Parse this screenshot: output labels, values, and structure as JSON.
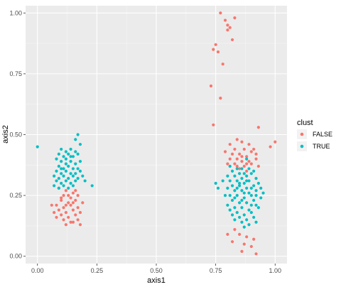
{
  "chart_data": {
    "type": "scatter",
    "xlabel": "axis1",
    "ylabel": "axis2",
    "xlim": [
      -0.05,
      1.05
    ],
    "ylim": [
      -0.03,
      1.03
    ],
    "x_ticks": [
      0,
      0.25,
      0.5,
      0.75,
      1
    ],
    "x_tick_labels": [
      "0.00",
      "0.25",
      "0.50",
      "0.75",
      "1.00"
    ],
    "y_ticks": [
      0,
      0.25,
      0.5,
      0.75,
      1
    ],
    "y_tick_labels": [
      "0.00",
      "0.25",
      "0.50",
      "0.75",
      "1.00"
    ],
    "grid": true,
    "legend": {
      "title": "clust",
      "position": "right"
    },
    "series": [
      {
        "name": "FALSE",
        "color": "#F8766D",
        "points": [
          [
            0.77,
            1.0
          ],
          [
            0.79,
            0.97
          ],
          [
            0.8,
            0.95
          ],
          [
            0.8,
            0.93
          ],
          [
            0.83,
            0.98
          ],
          [
            0.81,
            0.94
          ],
          [
            0.75,
            0.87
          ],
          [
            0.74,
            0.85
          ],
          [
            0.82,
            0.89
          ],
          [
            0.78,
            0.79
          ],
          [
            0.76,
            0.84
          ],
          [
            0.73,
            0.7
          ],
          [
            0.77,
            0.65
          ],
          [
            0.74,
            0.54
          ],
          [
            0.93,
            0.53
          ],
          [
            1.0,
            0.47
          ],
          [
            0.98,
            0.45
          ],
          [
            0.84,
            0.48
          ],
          [
            0.81,
            0.46
          ],
          [
            0.86,
            0.47
          ],
          [
            0.89,
            0.46
          ],
          [
            0.83,
            0.44
          ],
          [
            0.87,
            0.44
          ],
          [
            0.91,
            0.44
          ],
          [
            0.82,
            0.42
          ],
          [
            0.85,
            0.42
          ],
          [
            0.88,
            0.41
          ],
          [
            0.9,
            0.43
          ],
          [
            0.84,
            0.4
          ],
          [
            0.86,
            0.39
          ],
          [
            0.89,
            0.39
          ],
          [
            0.92,
            0.4
          ],
          [
            0.83,
            0.38
          ],
          [
            0.87,
            0.37
          ],
          [
            0.9,
            0.38
          ],
          [
            0.85,
            0.36
          ],
          [
            0.88,
            0.35
          ],
          [
            0.93,
            0.37
          ],
          [
            0.81,
            0.4
          ],
          [
            0.79,
            0.43
          ],
          [
            0.86,
            0.41
          ],
          [
            0.92,
            0.42
          ],
          [
            0.88,
            0.38
          ],
          [
            0.84,
            0.37
          ],
          [
            0.8,
            0.38
          ],
          [
            0.82,
            0.06
          ],
          [
            0.86,
            0.02
          ],
          [
            0.85,
            0.09
          ],
          [
            0.9,
            0.04
          ],
          [
            0.92,
            0.01
          ],
          [
            0.88,
            0.08
          ],
          [
            0.83,
            0.11
          ],
          [
            0.87,
            0.05
          ],
          [
            0.91,
            0.07
          ],
          [
            0.8,
            0.09
          ],
          [
            0.09,
            0.28
          ],
          [
            0.12,
            0.27
          ],
          [
            0.15,
            0.26
          ],
          [
            0.11,
            0.25
          ],
          [
            0.14,
            0.24
          ],
          [
            0.17,
            0.25
          ],
          [
            0.1,
            0.23
          ],
          [
            0.13,
            0.22
          ],
          [
            0.16,
            0.23
          ],
          [
            0.08,
            0.21
          ],
          [
            0.11,
            0.2
          ],
          [
            0.14,
            0.21
          ],
          [
            0.17,
            0.2
          ],
          [
            0.06,
            0.21
          ],
          [
            0.09,
            0.19
          ],
          [
            0.12,
            0.18
          ],
          [
            0.15,
            0.19
          ],
          [
            0.18,
            0.18
          ],
          [
            0.1,
            0.17
          ],
          [
            0.13,
            0.16
          ],
          [
            0.16,
            0.17
          ],
          [
            0.07,
            0.18
          ],
          [
            0.11,
            0.15
          ],
          [
            0.14,
            0.14
          ],
          [
            0.17,
            0.15
          ],
          [
            0.12,
            0.13
          ],
          [
            0.15,
            0.14
          ],
          [
            0.18,
            0.13
          ],
          [
            0.1,
            0.24
          ],
          [
            0.13,
            0.25
          ],
          [
            0.16,
            0.27
          ],
          [
            0.19,
            0.22
          ],
          [
            0.08,
            0.16
          ],
          [
            0.12,
            0.21
          ],
          [
            0.15,
            0.22
          ]
        ]
      },
      {
        "name": "TRUE",
        "color": "#00BFC4",
        "points": [
          [
            0.0,
            0.45
          ],
          [
            0.17,
            0.5
          ],
          [
            0.16,
            0.48
          ],
          [
            0.18,
            0.46
          ],
          [
            0.1,
            0.44
          ],
          [
            0.12,
            0.43
          ],
          [
            0.14,
            0.44
          ],
          [
            0.16,
            0.43
          ],
          [
            0.09,
            0.42
          ],
          [
            0.11,
            0.41
          ],
          [
            0.13,
            0.42
          ],
          [
            0.15,
            0.41
          ],
          [
            0.17,
            0.42
          ],
          [
            0.08,
            0.4
          ],
          [
            0.1,
            0.39
          ],
          [
            0.12,
            0.38
          ],
          [
            0.14,
            0.39
          ],
          [
            0.16,
            0.38
          ],
          [
            0.18,
            0.39
          ],
          [
            0.09,
            0.37
          ],
          [
            0.11,
            0.36
          ],
          [
            0.13,
            0.37
          ],
          [
            0.15,
            0.36
          ],
          [
            0.17,
            0.36
          ],
          [
            0.08,
            0.35
          ],
          [
            0.1,
            0.34
          ],
          [
            0.12,
            0.35
          ],
          [
            0.14,
            0.34
          ],
          [
            0.16,
            0.34
          ],
          [
            0.18,
            0.35
          ],
          [
            0.07,
            0.33
          ],
          [
            0.09,
            0.32
          ],
          [
            0.11,
            0.33
          ],
          [
            0.13,
            0.32
          ],
          [
            0.15,
            0.33
          ],
          [
            0.17,
            0.32
          ],
          [
            0.19,
            0.33
          ],
          [
            0.08,
            0.31
          ],
          [
            0.1,
            0.3
          ],
          [
            0.12,
            0.31
          ],
          [
            0.14,
            0.3
          ],
          [
            0.16,
            0.31
          ],
          [
            0.07,
            0.29
          ],
          [
            0.09,
            0.28
          ],
          [
            0.11,
            0.29
          ],
          [
            0.13,
            0.28
          ],
          [
            0.15,
            0.29
          ],
          [
            0.23,
            0.29
          ],
          [
            0.2,
            0.31
          ],
          [
            0.1,
            0.36
          ],
          [
            0.14,
            0.41
          ],
          [
            0.12,
            0.4
          ],
          [
            0.75,
            0.3
          ],
          [
            0.76,
            0.28
          ],
          [
            0.88,
            0.4
          ],
          [
            0.81,
            0.37
          ],
          [
            0.84,
            0.36
          ],
          [
            0.86,
            0.36
          ],
          [
            0.89,
            0.36
          ],
          [
            0.91,
            0.35
          ],
          [
            0.82,
            0.35
          ],
          [
            0.85,
            0.34
          ],
          [
            0.87,
            0.34
          ],
          [
            0.9,
            0.34
          ],
          [
            0.8,
            0.33
          ],
          [
            0.83,
            0.33
          ],
          [
            0.86,
            0.32
          ],
          [
            0.88,
            0.33
          ],
          [
            0.92,
            0.32
          ],
          [
            0.81,
            0.31
          ],
          [
            0.84,
            0.31
          ],
          [
            0.87,
            0.3
          ],
          [
            0.89,
            0.31
          ],
          [
            0.93,
            0.3
          ],
          [
            0.82,
            0.29
          ],
          [
            0.85,
            0.29
          ],
          [
            0.88,
            0.28
          ],
          [
            0.91,
            0.29
          ],
          [
            0.8,
            0.28
          ],
          [
            0.83,
            0.27
          ],
          [
            0.86,
            0.27
          ],
          [
            0.89,
            0.26
          ],
          [
            0.92,
            0.27
          ],
          [
            0.81,
            0.25
          ],
          [
            0.84,
            0.25
          ],
          [
            0.87,
            0.24
          ],
          [
            0.9,
            0.25
          ],
          [
            0.94,
            0.24
          ],
          [
            0.82,
            0.23
          ],
          [
            0.85,
            0.22
          ],
          [
            0.88,
            0.22
          ],
          [
            0.91,
            0.23
          ],
          [
            0.8,
            0.21
          ],
          [
            0.83,
            0.2
          ],
          [
            0.86,
            0.2
          ],
          [
            0.89,
            0.19
          ],
          [
            0.92,
            0.21
          ],
          [
            0.84,
            0.18
          ],
          [
            0.87,
            0.17
          ],
          [
            0.9,
            0.18
          ],
          [
            0.85,
            0.16
          ],
          [
            0.88,
            0.15
          ],
          [
            0.91,
            0.16
          ],
          [
            0.83,
            0.15
          ],
          [
            0.86,
            0.14
          ],
          [
            0.89,
            0.13
          ],
          [
            0.87,
            0.12
          ],
          [
            0.92,
            0.14
          ],
          [
            0.82,
            0.17
          ],
          [
            0.94,
            0.28
          ],
          [
            0.79,
            0.25
          ],
          [
            0.93,
            0.2
          ],
          [
            0.78,
            0.31
          ],
          [
            0.84,
            0.28
          ],
          [
            0.87,
            0.26
          ],
          [
            0.9,
            0.21
          ],
          [
            0.81,
            0.19
          ],
          [
            0.95,
            0.26
          ],
          [
            0.85,
            0.3
          ],
          [
            0.88,
            0.31
          ],
          [
            0.83,
            0.24
          ],
          [
            0.86,
            0.23
          ],
          [
            0.9,
            0.28
          ],
          [
            0.92,
            0.25
          ]
        ]
      }
    ]
  }
}
